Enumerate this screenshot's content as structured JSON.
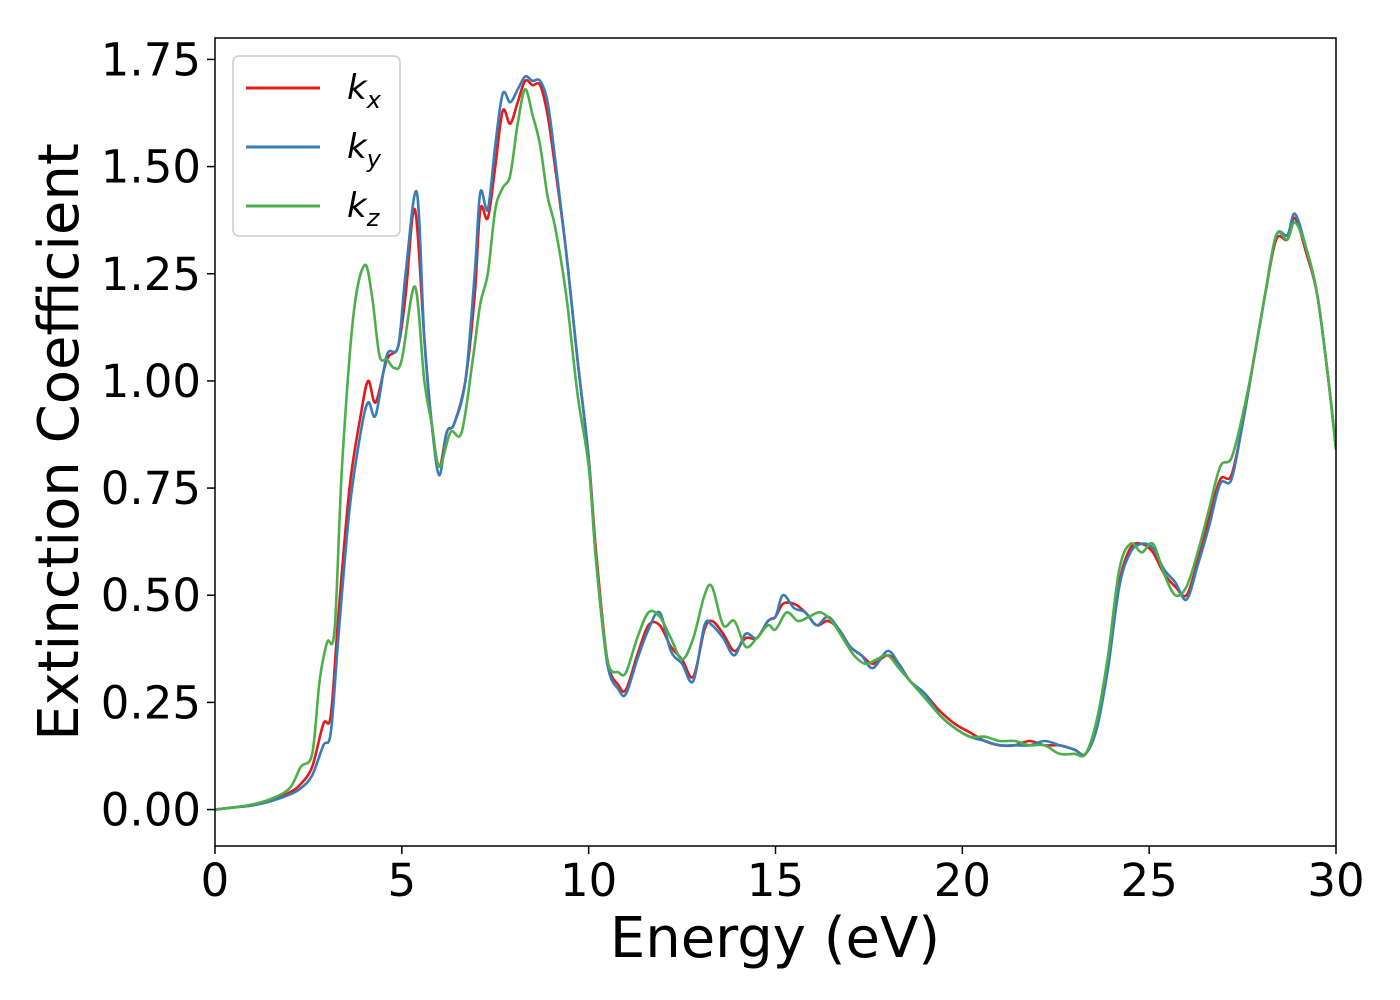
{
  "chart_data": {
    "type": "line",
    "title": "",
    "xlabel": "Energy (eV)",
    "ylabel": "Extinction Coefficient",
    "xlim": [
      0,
      30
    ],
    "ylim": [
      -0.085,
      1.8
    ],
    "xticks": [
      0,
      5,
      10,
      15,
      20,
      25,
      30
    ],
    "xtick_labels": [
      "0",
      "5",
      "10",
      "15",
      "20",
      "25",
      "30"
    ],
    "yticks": [
      0,
      0.25,
      0.5,
      0.75,
      1.0,
      1.25,
      1.5,
      1.75
    ],
    "ytick_labels": [
      "0.00",
      "0.25",
      "0.50",
      "0.75",
      "1.00",
      "1.25",
      "1.50",
      "1.75"
    ],
    "grid": false,
    "legend": {
      "position": "top-left"
    },
    "series": [
      {
        "name": "k",
        "subscript": "x",
        "color": "#e41a1c",
        "x": [
          0,
          0.5,
          1,
          1.5,
          2,
          2.3,
          2.6,
          2.9,
          3.1,
          3.3,
          3.6,
          3.9,
          4.1,
          4.3,
          4.6,
          4.9,
          5.1,
          5.35,
          5.6,
          5.8,
          6.0,
          6.2,
          6.4,
          6.7,
          6.95,
          7.1,
          7.3,
          7.5,
          7.7,
          7.9,
          8.1,
          8.3,
          8.5,
          8.7,
          8.9,
          9.1,
          9.4,
          9.7,
          10.0,
          10.2,
          10.5,
          10.8,
          11.0,
          11.3,
          11.6,
          11.9,
          12.2,
          12.5,
          12.8,
          13.1,
          13.3,
          13.6,
          13.9,
          14.2,
          14.5,
          14.8,
          15.0,
          15.2,
          15.5,
          15.8,
          16.1,
          16.4,
          16.7,
          17.0,
          17.3,
          17.6,
          18.0,
          18.3,
          18.6,
          19.0,
          19.4,
          19.8,
          20.2,
          20.6,
          21.0,
          21.4,
          21.8,
          22.2,
          22.6,
          23.0,
          23.3,
          23.6,
          23.9,
          24.2,
          24.5,
          24.8,
          25.1,
          25.4,
          25.7,
          26.0,
          26.3,
          26.6,
          26.9,
          27.2,
          27.5,
          27.8,
          28.1,
          28.4,
          28.7,
          28.9,
          29.2,
          29.5,
          29.8,
          30.0
        ],
        "y": [
          0,
          0.005,
          0.01,
          0.02,
          0.04,
          0.06,
          0.1,
          0.2,
          0.22,
          0.45,
          0.75,
          0.92,
          1.0,
          0.95,
          1.05,
          1.08,
          1.2,
          1.4,
          1.1,
          0.9,
          0.8,
          0.88,
          0.9,
          1.0,
          1.2,
          1.4,
          1.38,
          1.5,
          1.63,
          1.6,
          1.65,
          1.7,
          1.69,
          1.69,
          1.62,
          1.5,
          1.3,
          1.05,
          0.82,
          0.6,
          0.35,
          0.29,
          0.28,
          0.36,
          0.43,
          0.43,
          0.38,
          0.35,
          0.31,
          0.42,
          0.44,
          0.41,
          0.37,
          0.4,
          0.4,
          0.44,
          0.45,
          0.48,
          0.48,
          0.46,
          0.43,
          0.44,
          0.42,
          0.38,
          0.36,
          0.34,
          0.36,
          0.34,
          0.3,
          0.27,
          0.23,
          0.2,
          0.18,
          0.16,
          0.15,
          0.15,
          0.16,
          0.15,
          0.15,
          0.14,
          0.13,
          0.2,
          0.35,
          0.53,
          0.61,
          0.62,
          0.6,
          0.55,
          0.52,
          0.5,
          0.58,
          0.68,
          0.77,
          0.78,
          0.9,
          1.05,
          1.2,
          1.33,
          1.33,
          1.38,
          1.3,
          1.2,
          1.0,
          0.84
        ]
      },
      {
        "name": "k",
        "subscript": "y",
        "color": "#377eb8",
        "x": [
          0,
          0.5,
          1,
          1.5,
          2,
          2.3,
          2.6,
          2.9,
          3.1,
          3.3,
          3.6,
          3.9,
          4.1,
          4.3,
          4.6,
          4.9,
          5.1,
          5.4,
          5.6,
          5.8,
          6.0,
          6.2,
          6.4,
          6.7,
          6.95,
          7.1,
          7.3,
          7.5,
          7.7,
          7.9,
          8.1,
          8.3,
          8.5,
          8.7,
          8.9,
          9.1,
          9.4,
          9.7,
          10.0,
          10.2,
          10.5,
          10.8,
          11.0,
          11.3,
          11.6,
          11.9,
          12.2,
          12.5,
          12.8,
          13.1,
          13.3,
          13.6,
          13.9,
          14.2,
          14.5,
          14.8,
          15.0,
          15.2,
          15.5,
          15.8,
          16.1,
          16.4,
          16.7,
          17.0,
          17.3,
          17.6,
          18.0,
          18.3,
          18.6,
          19.0,
          19.4,
          19.8,
          20.2,
          20.6,
          21.0,
          21.4,
          21.8,
          22.2,
          22.6,
          23.0,
          23.3,
          23.6,
          23.9,
          24.2,
          24.5,
          24.8,
          25.1,
          25.4,
          25.7,
          26.0,
          26.3,
          26.6,
          26.9,
          27.2,
          27.5,
          27.8,
          28.1,
          28.4,
          28.7,
          28.9,
          29.2,
          29.5,
          29.8,
          30.0
        ],
        "y": [
          0,
          0.005,
          0.01,
          0.02,
          0.035,
          0.05,
          0.08,
          0.15,
          0.18,
          0.4,
          0.7,
          0.88,
          0.95,
          0.92,
          1.06,
          1.08,
          1.25,
          1.44,
          1.1,
          0.9,
          0.78,
          0.88,
          0.9,
          1.0,
          1.25,
          1.44,
          1.4,
          1.55,
          1.67,
          1.65,
          1.68,
          1.71,
          1.7,
          1.7,
          1.65,
          1.52,
          1.3,
          1.05,
          0.82,
          0.58,
          0.34,
          0.28,
          0.27,
          0.35,
          0.42,
          0.46,
          0.37,
          0.34,
          0.3,
          0.43,
          0.43,
          0.4,
          0.36,
          0.41,
          0.4,
          0.44,
          0.45,
          0.5,
          0.47,
          0.46,
          0.43,
          0.45,
          0.42,
          0.38,
          0.36,
          0.33,
          0.37,
          0.34,
          0.3,
          0.27,
          0.22,
          0.19,
          0.17,
          0.16,
          0.15,
          0.15,
          0.15,
          0.16,
          0.15,
          0.14,
          0.13,
          0.19,
          0.33,
          0.52,
          0.6,
          0.62,
          0.61,
          0.56,
          0.53,
          0.49,
          0.57,
          0.66,
          0.76,
          0.77,
          0.9,
          1.05,
          1.2,
          1.34,
          1.34,
          1.39,
          1.31,
          1.2,
          1.0,
          0.84
        ]
      },
      {
        "name": "k",
        "subscript": "z",
        "color": "#4daf4a",
        "x": [
          0,
          0.5,
          1,
          1.5,
          2,
          2.3,
          2.6,
          2.8,
          3.0,
          3.2,
          3.4,
          3.7,
          4.0,
          4.2,
          4.4,
          4.6,
          4.8,
          5.0,
          5.35,
          5.6,
          5.8,
          6.0,
          6.3,
          6.6,
          6.9,
          7.1,
          7.3,
          7.5,
          7.7,
          7.9,
          8.1,
          8.3,
          8.5,
          8.7,
          8.9,
          9.1,
          9.4,
          9.7,
          10.0,
          10.2,
          10.5,
          10.8,
          11.0,
          11.3,
          11.6,
          11.9,
          12.2,
          12.5,
          12.8,
          13.1,
          13.3,
          13.6,
          13.9,
          14.2,
          14.5,
          14.8,
          15.0,
          15.3,
          15.6,
          15.9,
          16.2,
          16.5,
          16.8,
          17.1,
          17.4,
          17.7,
          18.0,
          18.3,
          18.6,
          19.0,
          19.4,
          19.8,
          20.2,
          20.6,
          21.0,
          21.4,
          21.8,
          22.2,
          22.6,
          23.0,
          23.3,
          23.6,
          23.9,
          24.2,
          24.5,
          24.8,
          25.1,
          25.4,
          25.7,
          26.0,
          26.3,
          26.6,
          26.9,
          27.2,
          27.5,
          27.8,
          28.1,
          28.4,
          28.7,
          28.9,
          29.2,
          29.5,
          29.8,
          30.0
        ],
        "y": [
          0,
          0.005,
          0.012,
          0.025,
          0.05,
          0.1,
          0.13,
          0.3,
          0.39,
          0.42,
          0.8,
          1.15,
          1.27,
          1.2,
          1.06,
          1.05,
          1.03,
          1.05,
          1.22,
          1.0,
          0.9,
          0.8,
          0.88,
          0.88,
          1.05,
          1.18,
          1.25,
          1.4,
          1.45,
          1.48,
          1.6,
          1.68,
          1.62,
          1.55,
          1.43,
          1.36,
          1.2,
          0.97,
          0.8,
          0.58,
          0.35,
          0.32,
          0.32,
          0.4,
          0.46,
          0.45,
          0.4,
          0.35,
          0.4,
          0.5,
          0.52,
          0.43,
          0.44,
          0.38,
          0.4,
          0.43,
          0.42,
          0.46,
          0.44,
          0.45,
          0.46,
          0.44,
          0.4,
          0.36,
          0.34,
          0.35,
          0.36,
          0.33,
          0.3,
          0.26,
          0.22,
          0.19,
          0.17,
          0.17,
          0.16,
          0.16,
          0.15,
          0.15,
          0.13,
          0.13,
          0.13,
          0.21,
          0.36,
          0.56,
          0.62,
          0.6,
          0.62,
          0.55,
          0.5,
          0.52,
          0.6,
          0.7,
          0.8,
          0.82,
          0.92,
          1.05,
          1.2,
          1.34,
          1.33,
          1.37,
          1.31,
          1.2,
          1.0,
          0.84
        ]
      }
    ]
  }
}
